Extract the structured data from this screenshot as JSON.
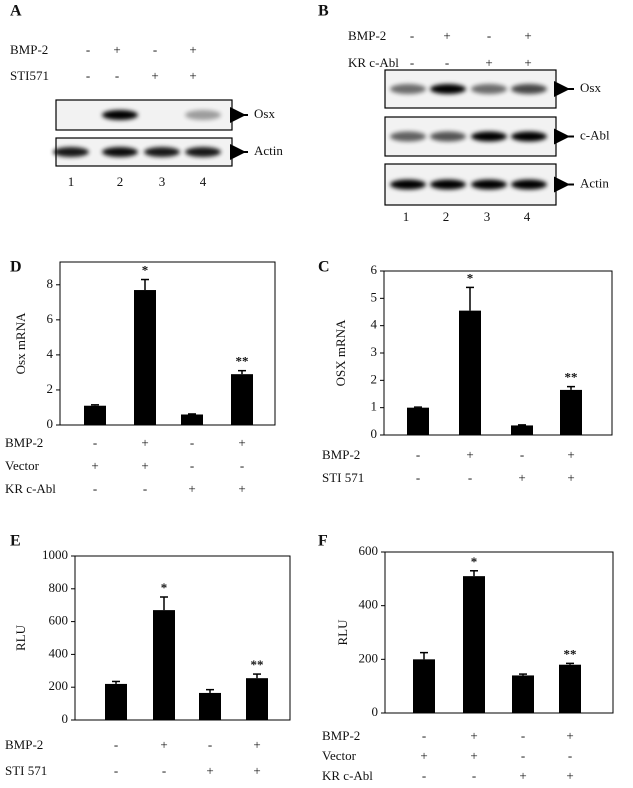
{
  "blots": [
    {
      "label": "A",
      "conditions": [
        {
          "name": "BMP-2",
          "signs": [
            "-",
            "+",
            "-",
            "+"
          ]
        },
        {
          "name": "STI571",
          "signs": [
            "-",
            "-",
            "+",
            "+"
          ]
        }
      ],
      "bands": [
        "Osx",
        "Actin"
      ],
      "lanes": [
        1,
        2,
        3,
        4
      ]
    },
    {
      "label": "B",
      "conditions": [
        {
          "name": "BMP-2",
          "signs": [
            "-",
            "+",
            "-",
            "+"
          ]
        },
        {
          "name": "KR c-Abl",
          "signs": [
            "-",
            "-",
            "+",
            "+"
          ]
        }
      ],
      "bands": [
        "Osx",
        "c-Abl",
        "Actin"
      ],
      "lanes": [
        1,
        2,
        3,
        4
      ]
    }
  ],
  "chart_data": [
    {
      "type": "bar",
      "label": "D",
      "ylabel": "Osx mRNA",
      "color": "#000000",
      "series": [
        {
          "values": [
            1.1,
            7.7,
            0.6,
            2.9
          ],
          "errors": [
            0.05,
            0.6,
            0.03,
            0.2
          ]
        }
      ],
      "markers": [
        null,
        "*",
        null,
        "**"
      ],
      "ylim": [
        0,
        9.3
      ],
      "yticks": [
        0,
        2,
        4,
        6,
        8
      ],
      "conditions": [
        {
          "name": "BMP-2",
          "signs": [
            "-",
            "+",
            "-",
            "+"
          ]
        },
        {
          "name": "Vector",
          "signs": [
            "+",
            "+",
            "-",
            "-"
          ]
        },
        {
          "name": "KR c-Abl",
          "signs": [
            "-",
            "-",
            "+",
            "+"
          ]
        }
      ]
    },
    {
      "type": "bar",
      "label": "C",
      "ylabel": "OSX mRNA",
      "color": "#000000",
      "series": [
        {
          "values": [
            1.0,
            4.55,
            0.35,
            1.65
          ],
          "errors": [
            0.02,
            0.85,
            0.02,
            0.12
          ]
        }
      ],
      "markers": [
        null,
        "*",
        null,
        "**"
      ],
      "ylim": [
        0,
        6
      ],
      "yticks": [
        0,
        1,
        2,
        3,
        4,
        5,
        6
      ],
      "conditions": [
        {
          "name": "BMP-2",
          "signs": [
            "-",
            "+",
            "-",
            "+"
          ]
        },
        {
          "name": "STI 571",
          "signs": [
            "-",
            "-",
            "+",
            "+"
          ]
        }
      ]
    },
    {
      "type": "bar",
      "label": "E",
      "ylabel": "RLU",
      "color": "#000000",
      "series": [
        {
          "values": [
            220,
            670,
            165,
            255
          ],
          "errors": [
            15,
            80,
            20,
            25
          ]
        }
      ],
      "markers": [
        null,
        "*",
        null,
        "**"
      ],
      "ylim": [
        0,
        1000
      ],
      "yticks": [
        0,
        200,
        400,
        600,
        800,
        1000
      ],
      "conditions": [
        {
          "name": "BMP-2",
          "signs": [
            "-",
            "+",
            "-",
            "+"
          ]
        },
        {
          "name": "STI 571",
          "signs": [
            "-",
            "-",
            "+",
            "+"
          ]
        }
      ]
    },
    {
      "type": "bar",
      "label": "F",
      "ylabel": "RLU",
      "color": "#000000",
      "series": [
        {
          "values": [
            200,
            510,
            140,
            180
          ],
          "errors": [
            25,
            20,
            5,
            5
          ]
        }
      ],
      "markers": [
        null,
        "*",
        null,
        "**"
      ],
      "ylim": [
        0,
        600
      ],
      "yticks": [
        0,
        200,
        400,
        600
      ],
      "conditions": [
        {
          "name": "BMP-2",
          "signs": [
            "-",
            "+",
            "-",
            "+"
          ]
        },
        {
          "name": "Vector",
          "signs": [
            "+",
            "+",
            "-",
            "-"
          ]
        },
        {
          "name": "KR c-Abl",
          "signs": [
            "-",
            "-",
            "+",
            "+"
          ]
        }
      ]
    }
  ]
}
